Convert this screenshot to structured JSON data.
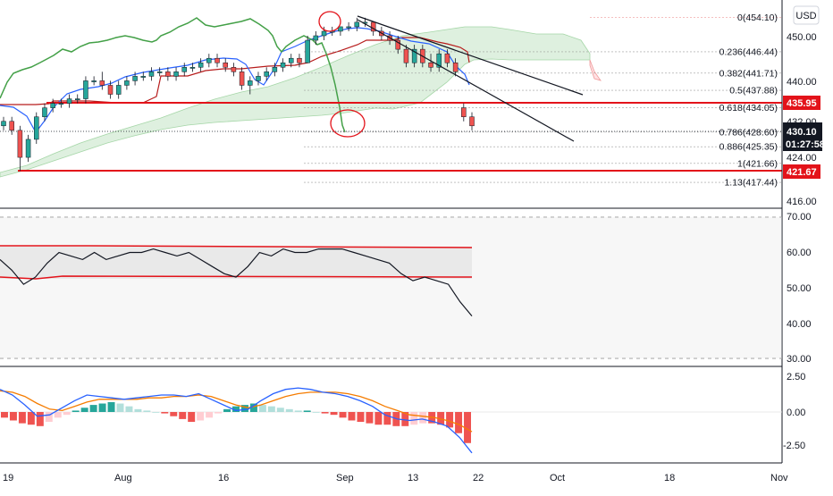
{
  "currency": "USD",
  "colors": {
    "up": "#26a69a",
    "down": "#ef5350",
    "red": "#e3131a",
    "tenkan": "#2962ff",
    "kijun": "#b71c1c",
    "lagging": "#43a047",
    "cloud_green": "#a5d6a7",
    "cloud_red": "#ef9a9a",
    "rsi_line": "#131722",
    "macd": "#2962ff",
    "signal": "#f57c00",
    "trend": "#131722"
  },
  "price_axis": {
    "ticks": [
      "450.00",
      "440.00",
      "432.00",
      "424.00",
      "416.00"
    ]
  },
  "fib_levels": [
    {
      "ratio": "0",
      "value": "454.10",
      "price": 454.1
    },
    {
      "ratio": "0.236",
      "value": "446.44",
      "price": 446.44
    },
    {
      "ratio": "0.382",
      "value": "441.71",
      "price": 441.71
    },
    {
      "ratio": "0.5",
      "value": "437.88",
      "price": 437.88
    },
    {
      "ratio": "0.618",
      "value": "434.05",
      "price": 434.05
    },
    {
      "ratio": "0.786",
      "value": "428.60",
      "price": 428.6
    },
    {
      "ratio": "0.886",
      "value": "425.35",
      "price": 425.35
    },
    {
      "ratio": "1",
      "value": "421.66",
      "price": 421.66
    },
    {
      "ratio": "1.13",
      "value": "417.44",
      "price": 417.44
    }
  ],
  "price_tags": {
    "resistance": "435.95",
    "support": "421.67",
    "last": "430.10",
    "countdown": "01:27:58"
  },
  "rsi_axis": {
    "ticks": [
      "70.00",
      "60.00",
      "50.00",
      "40.00",
      "30.00"
    ]
  },
  "macd_axis": {
    "ticks": [
      "2.50",
      "0.00",
      "-2.50"
    ]
  },
  "time_axis": {
    "labels": [
      "19",
      "Aug",
      "16",
      "Sep",
      "13",
      "22",
      "Oct",
      "18",
      "Nov"
    ]
  },
  "chart_data": {
    "type": "candlestick",
    "panes": [
      "price",
      "rsi",
      "macd"
    ],
    "price_range": [
      413,
      458
    ],
    "candles": [
      [
        430,
        432,
        429,
        431
      ],
      [
        431,
        432,
        428,
        429
      ],
      [
        429,
        430,
        420,
        423
      ],
      [
        423,
        428,
        422,
        427
      ],
      [
        427,
        433,
        426,
        432
      ],
      [
        432,
        435,
        431,
        434
      ],
      [
        434,
        436,
        433,
        435
      ],
      [
        435,
        436,
        434,
        435
      ],
      [
        435,
        437,
        434,
        436
      ],
      [
        436,
        437,
        435,
        436
      ],
      [
        436,
        441,
        435,
        440
      ],
      [
        440,
        441,
        439,
        440
      ],
      [
        440,
        442,
        438,
        439
      ],
      [
        439,
        440,
        436,
        437
      ],
      [
        437,
        440,
        436,
        439
      ],
      [
        439,
        441,
        438,
        440
      ],
      [
        440,
        442,
        439,
        441
      ],
      [
        441,
        442,
        440,
        441
      ],
      [
        441,
        443,
        440,
        442
      ],
      [
        442,
        443,
        441,
        442
      ],
      [
        442,
        443,
        440,
        441
      ],
      [
        441,
        443,
        440,
        442
      ],
      [
        442,
        444,
        441,
        443
      ],
      [
        443,
        444,
        442,
        443
      ],
      [
        443,
        445,
        442,
        444
      ],
      [
        444,
        446,
        443,
        445
      ],
      [
        445,
        446,
        443,
        444
      ],
      [
        444,
        445,
        442,
        443
      ],
      [
        443,
        444,
        441,
        442
      ],
      [
        442,
        443,
        438,
        439
      ],
      [
        439,
        441,
        437,
        440
      ],
      [
        440,
        442,
        439,
        441
      ],
      [
        441,
        443,
        440,
        442
      ],
      [
        442,
        444,
        441,
        443
      ],
      [
        443,
        445,
        442,
        444
      ],
      [
        444,
        446,
        443,
        445
      ],
      [
        445,
        446,
        443,
        444
      ],
      [
        444,
        450,
        444,
        449
      ],
      [
        449,
        451,
        448,
        450
      ],
      [
        450,
        452,
        449,
        451
      ],
      [
        451,
        452,
        450,
        451
      ],
      [
        451,
        452,
        450,
        452
      ],
      [
        452,
        453,
        451,
        452
      ],
      [
        452,
        454,
        451,
        453
      ],
      [
        453,
        454,
        452,
        453
      ],
      [
        453,
        453,
        450,
        451
      ],
      [
        451,
        452,
        449,
        450
      ],
      [
        450,
        451,
        448,
        449
      ],
      [
        449,
        450,
        446,
        447
      ],
      [
        447,
        448,
        443,
        444
      ],
      [
        444,
        448,
        443,
        447
      ],
      [
        447,
        448,
        443,
        444
      ],
      [
        444,
        446,
        442,
        443
      ],
      [
        443,
        447,
        442,
        446
      ],
      [
        446,
        447,
        443,
        444
      ],
      [
        444,
        445,
        441,
        442
      ],
      [
        434,
        435,
        431,
        432
      ],
      [
        432,
        433,
        429,
        430
      ]
    ],
    "horizontal_lines": [
      435.95,
      421.67
    ],
    "rsi": {
      "range": [
        25,
        75
      ],
      "upper_band": 61.2,
      "lower_band": 53.1,
      "values": [
        58,
        55,
        51,
        53,
        57,
        60,
        59,
        58,
        60,
        58,
        59,
        60,
        60,
        61,
        60,
        59,
        60,
        58,
        56,
        54,
        53,
        56,
        60,
        59,
        61,
        60,
        60,
        61,
        61,
        61,
        60,
        59,
        58,
        57,
        54,
        52,
        53,
        52,
        51,
        46,
        42
      ]
    },
    "macd": {
      "range": [
        -4,
        3
      ],
      "macd": [
        1.6,
        1.2,
        0.5,
        -0.3,
        -0.2,
        0.3,
        0.8,
        1.2,
        1.1,
        1.0,
        0.9,
        1.0,
        1.1,
        1.2,
        1.2,
        1.1,
        1.3,
        0.9,
        0.5,
        0.1,
        0.2,
        0.8,
        1.3,
        1.6,
        1.7,
        1.6,
        1.4,
        1.3,
        1.1,
        0.8,
        0.4,
        -0.2,
        -0.5,
        -0.6,
        -0.5,
        -0.7,
        -1.0,
        -1.8,
        -2.9
      ],
      "signal": [
        1.5,
        1.4,
        1.1,
        0.6,
        0.2,
        0.1,
        0.4,
        0.7,
        0.9,
        0.9,
        0.9,
        0.9,
        1.0,
        1.0,
        1.1,
        1.1,
        1.2,
        1.1,
        0.8,
        0.5,
        0.3,
        0.5,
        0.8,
        1.1,
        1.3,
        1.4,
        1.4,
        1.4,
        1.3,
        1.1,
        0.8,
        0.4,
        0.1,
        -0.2,
        -0.3,
        -0.4,
        -0.6,
        -0.9,
        -1.4
      ],
      "histogram": [
        -0.4,
        -0.6,
        -0.8,
        -0.9,
        -1.0,
        -0.7,
        -0.4,
        -0.2,
        0.1,
        0.3,
        0.5,
        0.6,
        0.7,
        0.6,
        0.4,
        0.2,
        0.1,
        0.0,
        -0.1,
        -0.3,
        -0.5,
        -0.7,
        -0.6,
        -0.4,
        -0.1,
        0.2,
        0.4,
        0.5,
        0.6,
        0.5,
        0.4,
        0.3,
        0.2,
        0.1,
        0.1,
        0.0,
        -0.1,
        -0.2,
        -0.4,
        -0.6,
        -0.7,
        -0.8,
        -0.9,
        -0.9,
        -1.0,
        -1.0,
        -0.9,
        -0.8,
        -0.8,
        -0.9,
        -1.1,
        -1.5,
        -2.2
      ]
    }
  }
}
